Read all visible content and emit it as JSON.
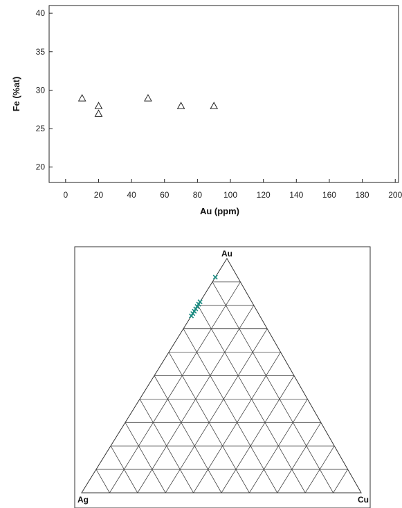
{
  "chart_data": [
    {
      "type": "scatter",
      "xlabel": "Au (ppm)",
      "ylabel": "Fe (%at)",
      "xlim": [
        -10,
        202
      ],
      "ylim": [
        18,
        41
      ],
      "xticks": [
        "0",
        "20",
        "40",
        "60",
        "80",
        "100",
        "120",
        "140",
        "160",
        "180",
        "200"
      ],
      "yticks": [
        "20",
        "25",
        "30",
        "35",
        "40"
      ],
      "marker": "open-triangle",
      "grid": false,
      "series": [
        {
          "x": [
            10,
            20,
            20,
            50,
            70,
            90
          ],
          "y": [
            29,
            28,
            27,
            29,
            28,
            28
          ]
        }
      ]
    },
    {
      "type": "ternary",
      "vertices": {
        "top": "Au",
        "left": "Ag",
        "right": "Cu"
      },
      "grid_divisions": 10,
      "marker_color": "#1a8a80",
      "points": [
        {
          "Au": 0.92,
          "Ag": 0.08,
          "Cu": 0.0
        },
        {
          "Au": 0.815,
          "Ag": 0.185,
          "Cu": 0.0
        },
        {
          "Au": 0.805,
          "Ag": 0.195,
          "Cu": 0.0
        },
        {
          "Au": 0.795,
          "Ag": 0.205,
          "Cu": 0.0
        },
        {
          "Au": 0.785,
          "Ag": 0.215,
          "Cu": 0.0
        },
        {
          "Au": 0.775,
          "Ag": 0.225,
          "Cu": 0.0
        },
        {
          "Au": 0.765,
          "Ag": 0.235,
          "Cu": 0.0
        },
        {
          "Au": 0.755,
          "Ag": 0.245,
          "Cu": 0.0
        }
      ]
    }
  ]
}
